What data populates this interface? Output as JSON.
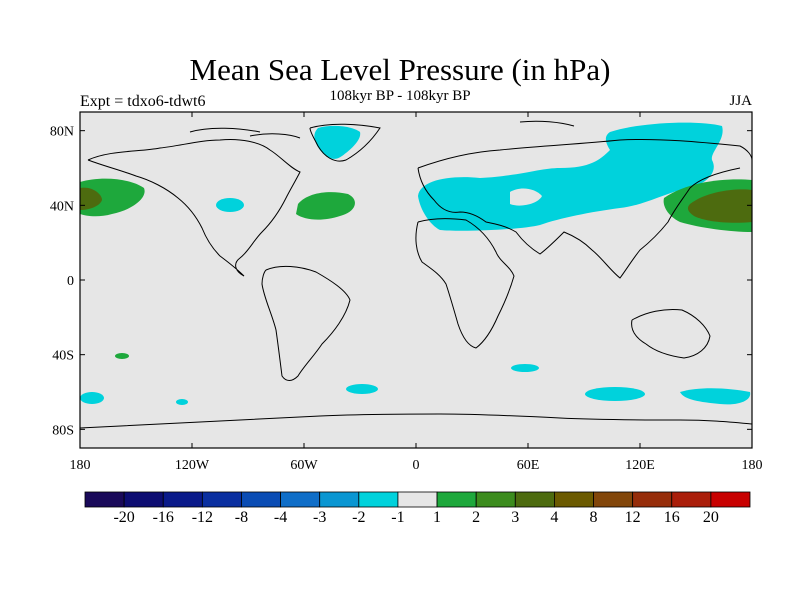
{
  "title": "Mean Sea Level Pressure (in hPa)",
  "subtitle": "108kyr BP - 108kyr BP",
  "experiment": "Expt = tdxo6-tdwt6",
  "season": "JJA",
  "map": {
    "projection": "cylindrical-equidistant",
    "background_color": "#e6e6e6",
    "lat_ticks": [
      {
        "label": "80N",
        "value": 80
      },
      {
        "label": "40N",
        "value": 40
      },
      {
        "label": "0",
        "value": 0
      },
      {
        "label": "40S",
        "value": -40
      },
      {
        "label": "80S",
        "value": -80
      }
    ],
    "lon_ticks": [
      {
        "label": "180",
        "value": -180
      },
      {
        "label": "120W",
        "value": -120
      },
      {
        "label": "60W",
        "value": -60
      },
      {
        "label": "0",
        "value": 0
      },
      {
        "label": "60E",
        "value": 60
      },
      {
        "label": "120E",
        "value": 120
      },
      {
        "label": "180",
        "value": 180
      }
    ]
  },
  "colorbar": {
    "colors": [
      "#1a0a5a",
      "#0d0d72",
      "#0a1a8a",
      "#0a2fa0",
      "#0a4cb4",
      "#0f6ec8",
      "#0a96d2",
      "#00d2dc",
      "#e6e6e6",
      "#1ea83c",
      "#3c8c1e",
      "#4d6b0f",
      "#6b5a00",
      "#82460a",
      "#962d0a",
      "#aa1e0a",
      "#c80000"
    ],
    "labels": [
      "-20",
      "-16",
      "-12",
      "-8",
      "-4",
      "-3",
      "-2",
      "-1",
      "1",
      "2",
      "3",
      "4",
      "8",
      "12",
      "16",
      "20"
    ]
  }
}
